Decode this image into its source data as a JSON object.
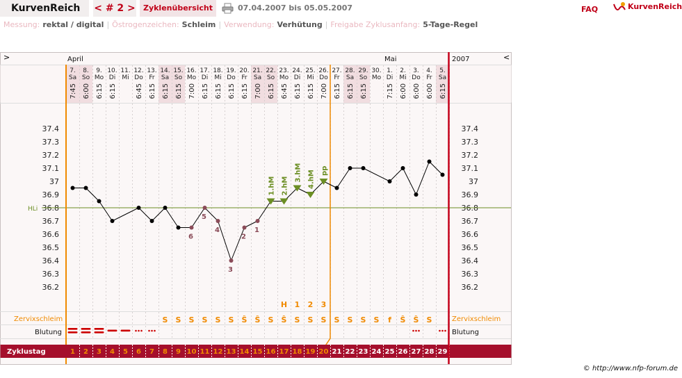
{
  "header": {
    "brand": "KurvenReich",
    "cycle_nav": "< # 2 >",
    "overview": "Zyklenübersicht",
    "range": "07.04.2007 bis 05.05.2007",
    "faq": "FAQ",
    "logo": "KurvenReich"
  },
  "settings": [
    {
      "label": "Messung:",
      "value": "rektal / digital"
    },
    {
      "label": "Östrogenzeichen:",
      "value": "Schleim"
    },
    {
      "label": "Verwendung:",
      "value": "Verhütung"
    },
    {
      "label": "Freigabe Zyklusanfang:",
      "value": "5-Tage-Regel"
    }
  ],
  "chart_data": {
    "type": "line",
    "nav_prev": ">",
    "nav_next": "<",
    "year": "2007",
    "months": [
      {
        "label": "April",
        "index": 0
      },
      {
        "label": "Mai",
        "index": 24
      }
    ],
    "categories": [
      "7.",
      "8.",
      "9.",
      "10.",
      "11.",
      "12.",
      "13.",
      "14.",
      "15.",
      "16.",
      "17.",
      "18.",
      "19.",
      "20.",
      "21.",
      "22.",
      "23.",
      "24.",
      "25.",
      "26.",
      "27.",
      "28.",
      "29.",
      "30.",
      "1.",
      "2.",
      "3.",
      "4.",
      "5."
    ],
    "weekdays": [
      "Sa",
      "So",
      "Mo",
      "Di",
      "Mi",
      "Do",
      "Fr",
      "Sa",
      "So",
      "Mo",
      "Di",
      "Mi",
      "Do",
      "Fr",
      "Sa",
      "So",
      "Mo",
      "Di",
      "Mi",
      "Do",
      "Fr",
      "Sa",
      "So",
      "Mo",
      "Di",
      "Mi",
      "Do",
      "Fr",
      "Sa"
    ],
    "times": [
      "7:45",
      "6:00",
      "6:15",
      "6:15",
      null,
      "6:45",
      "6:15",
      "6:15",
      "6:15",
      "7:00",
      "6:15",
      "6:15",
      "6:15",
      "6:15",
      "7:00",
      "6:15",
      "6:45",
      "6:15",
      "6:15",
      "7:00",
      "6:15",
      "6:15",
      "6:15",
      null,
      "7:15",
      "6:00",
      "6:00",
      "6:00",
      "6:15"
    ],
    "values": [
      36.95,
      36.95,
      36.85,
      36.7,
      null,
      36.8,
      36.7,
      36.8,
      36.65,
      36.65,
      36.8,
      36.7,
      36.4,
      36.65,
      36.7,
      36.85,
      36.85,
      36.95,
      36.9,
      37.0,
      36.95,
      37.1,
      37.1,
      null,
      37.0,
      37.1,
      36.9,
      37.15,
      37.05
    ],
    "color": "#000000",
    "point_labels": [
      null,
      null,
      null,
      null,
      null,
      null,
      null,
      null,
      null,
      "6",
      "5",
      "4",
      "3",
      "2",
      "1",
      "1.hM",
      "2.hM",
      "3.hM",
      "4.hM",
      "pp",
      null,
      null,
      null,
      null,
      null,
      null,
      null,
      null,
      null
    ],
    "low_color": "#8a4b58",
    "high_color": "#6b8e23",
    "ylim": [
      36.0,
      37.6
    ],
    "yticks": [
      37.4,
      37.3,
      37.2,
      37.1,
      37,
      36.9,
      36.8,
      36.7,
      36.6,
      36.5,
      36.4,
      36.3,
      36.2
    ],
    "coverline": {
      "label": "HLi",
      "value": 36.8,
      "color": "#6b8e23"
    },
    "zervix_label": "Zervixschleim",
    "zervix": [
      null,
      null,
      null,
      null,
      null,
      null,
      null,
      "S",
      "S",
      "S",
      "S",
      "S",
      "S",
      "Ŝ",
      "Ŝ",
      "S",
      "Ŝ",
      "S",
      "S",
      "S",
      "S",
      "S",
      "S",
      "S",
      "f",
      "Ŝ",
      "Ŝ",
      "S",
      null
    ],
    "zervix_peak": [
      null,
      null,
      null,
      null,
      null,
      null,
      null,
      null,
      null,
      null,
      null,
      null,
      null,
      null,
      null,
      null,
      "H",
      "1",
      "2",
      "3",
      null,
      null,
      null,
      null,
      null,
      null,
      null,
      null,
      null
    ],
    "blutung_label": "Blutung",
    "blutung": [
      3,
      3,
      3,
      2,
      2,
      1,
      1,
      null,
      null,
      null,
      null,
      null,
      null,
      null,
      null,
      null,
      null,
      null,
      null,
      null,
      null,
      null,
      null,
      null,
      null,
      null,
      1,
      null,
      1
    ],
    "zyklustag_label": "Zyklustag",
    "cycle_days": [
      1,
      2,
      3,
      4,
      5,
      6,
      7,
      8,
      9,
      10,
      11,
      12,
      13,
      14,
      15,
      16,
      17,
      18,
      19,
      20,
      21,
      22,
      23,
      24,
      25,
      26,
      27,
      28,
      29
    ],
    "evaluation_end_day": 20
  },
  "footer": "© http://www.nfp-forum.de"
}
